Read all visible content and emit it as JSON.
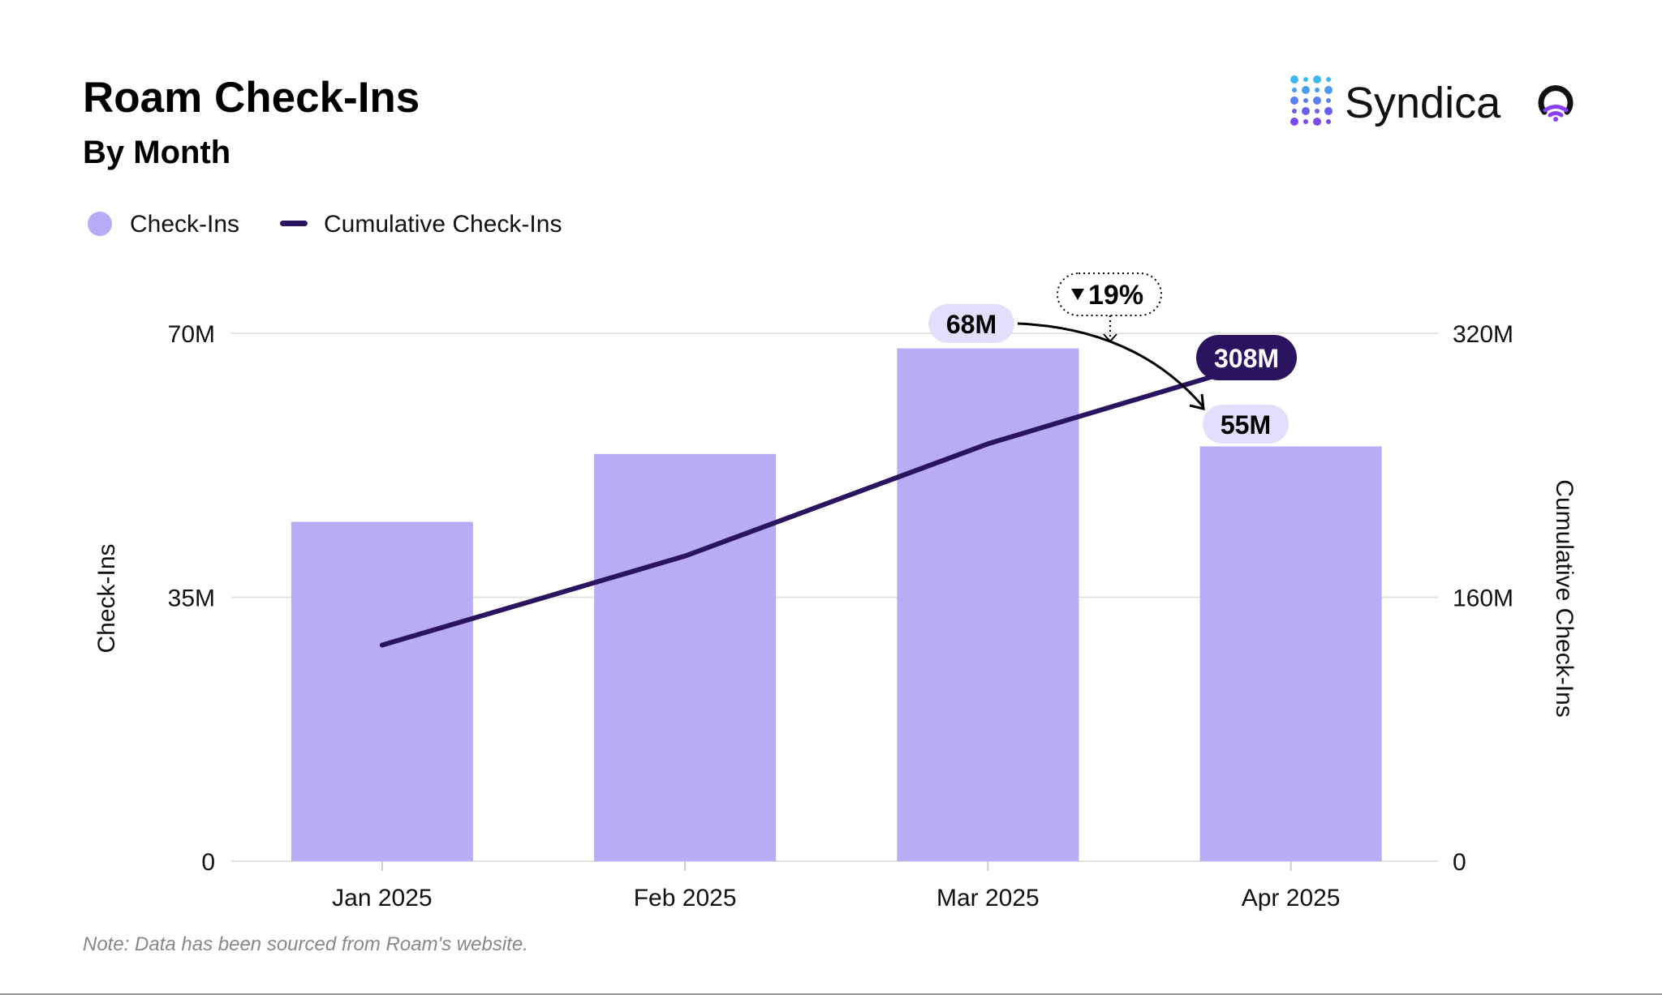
{
  "header": {
    "title": "Roam Check-Ins",
    "subtitle": "By Month"
  },
  "brand": {
    "name": "Syndica",
    "logo_icon": "syndica-dots-logo",
    "partner_icon": "roam-pin-wifi-logo"
  },
  "legend": [
    {
      "label": "Check-Ins",
      "color": "#b9acf7",
      "shape": "circle"
    },
    {
      "label": "Cumulative Check-Ins",
      "color": "#2a145f",
      "shape": "line"
    }
  ],
  "note": "Note: Data has been sourced from Roam's website.",
  "chart_data": {
    "type": "bar+line",
    "categories": [
      "Jan 2025",
      "Feb 2025",
      "Mar 2025",
      "Apr 2025"
    ],
    "series": [
      {
        "name": "Check-Ins",
        "type": "bar",
        "axis": "left",
        "values": [
          45,
          54,
          68,
          55
        ],
        "color": "#b9acf7"
      },
      {
        "name": "Cumulative Check-Ins",
        "type": "line",
        "axis": "right",
        "values": [
          131,
          185,
          253,
          308
        ],
        "color": "#2a145f"
      }
    ],
    "left_axis": {
      "label": "Check-Ins",
      "range": [
        0,
        70
      ],
      "ticks": [
        "0",
        "35M",
        "70M"
      ]
    },
    "right_axis": {
      "label": "Cumulative Check-Ins",
      "range": [
        0,
        320
      ],
      "ticks": [
        "0",
        "160M",
        "320M"
      ]
    },
    "grid": true,
    "legend_position": "top-left",
    "annotations": {
      "mar_label": "68M",
      "apr_label": "55M",
      "cumulative_label": "308M",
      "change": "19%",
      "change_direction": "down"
    }
  }
}
